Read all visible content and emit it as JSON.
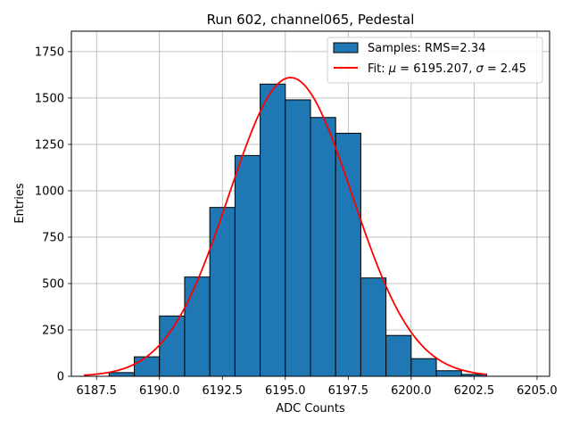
{
  "chart_data": {
    "type": "bar",
    "title": "Run 602, channel065, Pedestal",
    "xlabel": "ADC Counts",
    "ylabel": "Entries",
    "xlim": [
      6186.5,
      6205.5
    ],
    "ylim": [
      0,
      1860
    ],
    "xticks": [
      6187.5,
      6190.0,
      6192.5,
      6195.0,
      6197.5,
      6200.0,
      6202.5,
      6205.0
    ],
    "xtick_labels": [
      "6187.5",
      "6190.0",
      "6192.5",
      "6195.0",
      "6197.5",
      "6200.0",
      "6202.5",
      "6205.0"
    ],
    "yticks": [
      0,
      250,
      500,
      750,
      1000,
      1250,
      1500,
      1750
    ],
    "ytick_labels": [
      "0",
      "250",
      "500",
      "750",
      "1000",
      "1250",
      "1500",
      "1750"
    ],
    "grid": true,
    "legend_position": "top-right",
    "histogram": {
      "name": "Samples: RMS=2.34",
      "color": "#1f77b4",
      "edge_color": "#000000",
      "bin_edges": [
        6188,
        6189,
        6190,
        6191,
        6192,
        6193,
        6194,
        6195,
        6196,
        6197,
        6198,
        6199,
        6200,
        6201,
        6202,
        6203
      ],
      "counts": [
        20,
        105,
        325,
        535,
        910,
        1190,
        1575,
        1490,
        1395,
        1310,
        530,
        220,
        95,
        30,
        10
      ]
    },
    "fit": {
      "name_prefix": "Fit: ",
      "name_mu": "μ",
      "name_mid": " = 6195.207, ",
      "name_sigma": "σ",
      "name_suffix": " = 2.45",
      "color": "#ff0000",
      "mu": 6195.207,
      "sigma": 2.45,
      "amplitude": 1610,
      "x_range": [
        6187.0,
        6203.0
      ]
    }
  }
}
